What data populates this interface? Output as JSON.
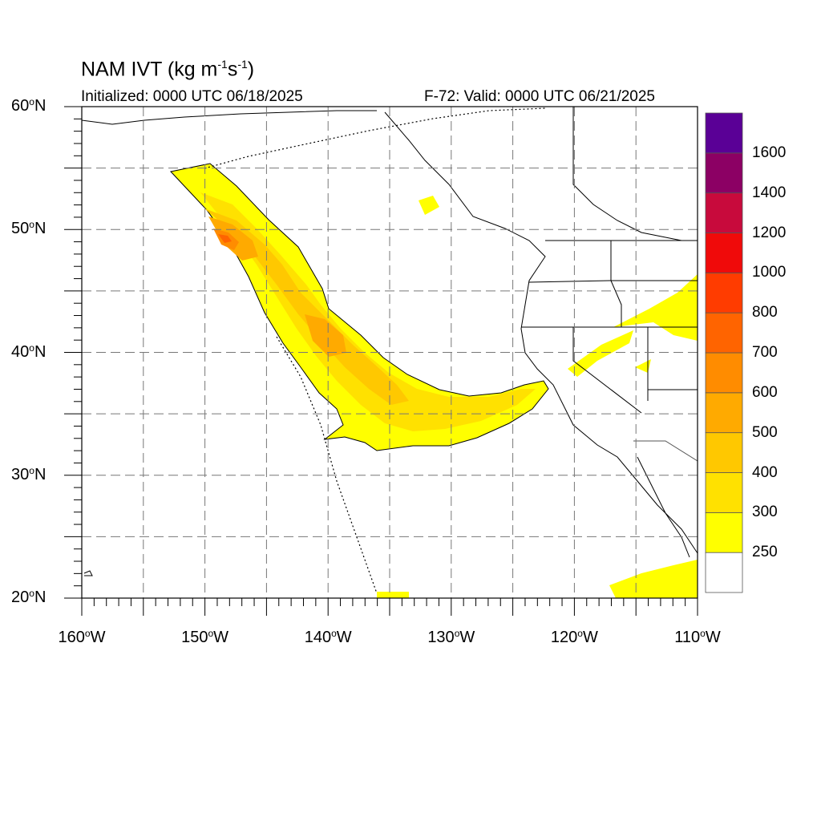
{
  "title": {
    "prefix": "NAM IVT (kg m",
    "sup1": "-1",
    "mid": "s",
    "sup2": "-1",
    "suffix": ")"
  },
  "subtitle_left": "Initialized: 0000 UTC 06/18/2025",
  "subtitle_right": "F-72: Valid: 0000 UTC 06/21/2025",
  "map": {
    "lon_range": [
      -160,
      -110
    ],
    "lat_range": [
      20,
      60
    ],
    "grid_lons": [
      -155,
      -150,
      -145,
      -140,
      -135,
      -130,
      -125,
      -120,
      -115
    ],
    "grid_lats": [
      25,
      30,
      35,
      40,
      45,
      50,
      55
    ]
  },
  "lat_labels": [
    {
      "value": 60,
      "text": "60",
      "suffix": "N"
    },
    {
      "value": 50,
      "text": "50",
      "suffix": "N"
    },
    {
      "value": 40,
      "text": "40",
      "suffix": "N"
    },
    {
      "value": 30,
      "text": "30",
      "suffix": "N"
    },
    {
      "value": 20,
      "text": "20",
      "suffix": "N"
    }
  ],
  "lon_labels": [
    {
      "value": -160,
      "text": "160",
      "suffix": "W"
    },
    {
      "value": -150,
      "text": "150",
      "suffix": "W"
    },
    {
      "value": -140,
      "text": "140",
      "suffix": "W"
    },
    {
      "value": -130,
      "text": "130",
      "suffix": "W"
    },
    {
      "value": -120,
      "text": "120",
      "suffix": "W"
    },
    {
      "value": -110,
      "text": "110",
      "suffix": "W"
    }
  ],
  "colorbar": {
    "colors": [
      "#ffffff",
      "#ffff00",
      "#ffe100",
      "#ffc800",
      "#ffaa00",
      "#ff8c00",
      "#ff6400",
      "#ff3c00",
      "#f00a0a",
      "#c80a3c",
      "#8c0064",
      "#5a0096"
    ],
    "labels": [
      "250",
      "300",
      "400",
      "500",
      "600",
      "700",
      "800",
      "1000",
      "1200",
      "1400",
      "1600"
    ]
  }
}
